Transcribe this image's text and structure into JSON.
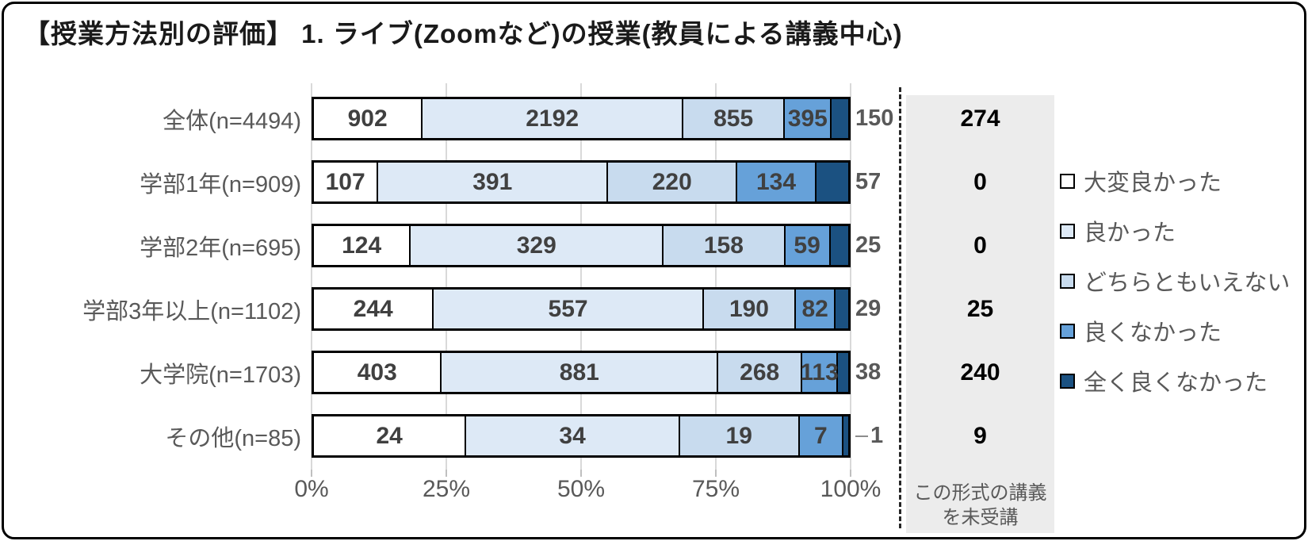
{
  "title": "【授業方法別の評価】 1. ライブ(Zoomなど)の授業(教員による講義中心)",
  "x_axis": [
    "0%",
    "25%",
    "50%",
    "75%",
    "100%"
  ],
  "unattended_note_line1": "この形式の講義",
  "unattended_note_line2": "を未受講",
  "colors": {
    "series": [
      "#ffffff",
      "#dde9f6",
      "#c8dbee",
      "#66a1d9",
      "#1b5181"
    ],
    "grid": "#d9d9d9",
    "axis_text": "#595959",
    "inside_label": "#404040",
    "unattended_bg": "#ececec"
  },
  "chart_data": {
    "type": "bar",
    "stacked": true,
    "orientation": "horizontal",
    "title": "【授業方法別の評価】 1. ライブ(Zoomなど)の授業(教員による講義中心)",
    "categories": [
      "全体(n=4494)",
      "学部1年(n=909)",
      "学部2年(n=695)",
      "学部3年以上(n=1102)",
      "大学院(n=1703)",
      "その他(n=85)"
    ],
    "series": [
      {
        "name": "大変良かった",
        "values": [
          902,
          107,
          124,
          244,
          403,
          24
        ]
      },
      {
        "name": "良かった",
        "values": [
          2192,
          391,
          329,
          557,
          881,
          34
        ]
      },
      {
        "name": "どちらともいえない",
        "values": [
          855,
          220,
          158,
          190,
          268,
          19
        ]
      },
      {
        "name": "良くなかった",
        "values": [
          395,
          134,
          59,
          82,
          113,
          7
        ]
      },
      {
        "name": "全く良くなかった",
        "values": [
          150,
          57,
          25,
          29,
          38,
          1
        ]
      }
    ],
    "unattended": {
      "label": "この形式の講義を未受講",
      "values": [
        274,
        0,
        0,
        25,
        240,
        9
      ]
    },
    "x_tick_labels": [
      "0%",
      "25%",
      "50%",
      "75%",
      "100%"
    ],
    "xlim": [
      0,
      100
    ],
    "grid": true,
    "legend_position": "right",
    "value_labels": "shown on each segment; last segment labeled outside bar end"
  }
}
